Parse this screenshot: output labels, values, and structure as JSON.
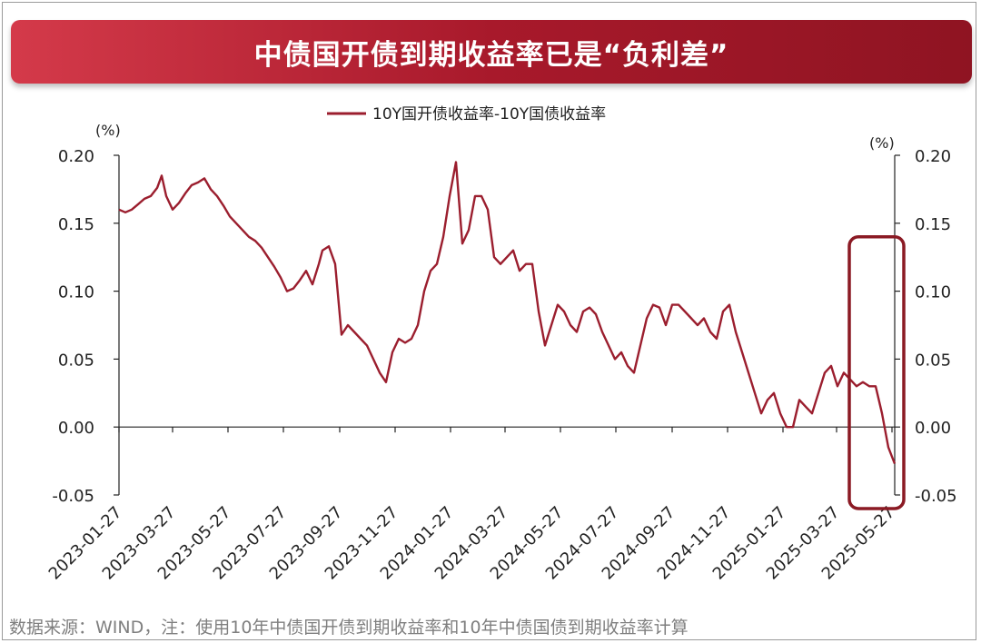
{
  "title": "中债国开债到期收益率已是“负利差”",
  "footer": "数据来源：WIND，注：使用10年中债国开债到期收益率和10年中债国债到期收益率计算",
  "colors": {
    "line": "#9b1e2e",
    "negative_tick": "#e0141e",
    "banner": "#a8192b",
    "highlight": "#8b1a24"
  },
  "chart_data": {
    "type": "line",
    "legend": "10Y国开债收益率-10Y国债收益率",
    "legend_position": "top-center",
    "y_unit_left": "(%)",
    "y_unit_right": "(%)",
    "ylim": [
      -0.05,
      0.2
    ],
    "y_ticks": [
      "0.20",
      "0.15",
      "0.10",
      "0.05",
      "0.00",
      "-0.05"
    ],
    "x_range": [
      "2023-01-27",
      "2025-05-30"
    ],
    "x_ticks": [
      "2023-01-27",
      "2023-03-27",
      "2023-05-27",
      "2023-07-27",
      "2023-09-27",
      "2023-11-27",
      "2024-01-27",
      "2024-03-27",
      "2024-05-27",
      "2024-07-27",
      "2024-09-27",
      "2024-11-27",
      "2025-01-27",
      "2025-03-27",
      "2025-05-27"
    ],
    "grid": false,
    "highlight": {
      "from": "2025-04-10",
      "to": "2025-05-30",
      "note": "boxed region"
    },
    "series": [
      {
        "name": "10Y国开债收益率-10Y国债收益率",
        "x": [
          "2023-01-27",
          "2023-02-03",
          "2023-02-10",
          "2023-02-17",
          "2023-02-24",
          "2023-03-03",
          "2023-03-10",
          "2023-03-15",
          "2023-03-20",
          "2023-03-27",
          "2023-04-03",
          "2023-04-10",
          "2023-04-17",
          "2023-04-24",
          "2023-05-01",
          "2023-05-08",
          "2023-05-15",
          "2023-05-22",
          "2023-05-29",
          "2023-06-05",
          "2023-06-12",
          "2023-06-19",
          "2023-06-26",
          "2023-07-03",
          "2023-07-10",
          "2023-07-17",
          "2023-07-24",
          "2023-07-31",
          "2023-08-07",
          "2023-08-14",
          "2023-08-21",
          "2023-08-28",
          "2023-09-04",
          "2023-09-08",
          "2023-09-15",
          "2023-09-22",
          "2023-09-29",
          "2023-10-06",
          "2023-10-13",
          "2023-10-20",
          "2023-10-27",
          "2023-11-03",
          "2023-11-10",
          "2023-11-17",
          "2023-11-24",
          "2023-12-01",
          "2023-12-08",
          "2023-12-15",
          "2023-12-22",
          "2023-12-29",
          "2024-01-05",
          "2024-01-12",
          "2024-01-19",
          "2024-01-26",
          "2024-02-02",
          "2024-02-09",
          "2024-02-16",
          "2024-02-23",
          "2024-03-01",
          "2024-03-08",
          "2024-03-15",
          "2024-03-22",
          "2024-03-29",
          "2024-04-05",
          "2024-04-12",
          "2024-04-19",
          "2024-04-26",
          "2024-05-03",
          "2024-05-10",
          "2024-05-17",
          "2024-05-24",
          "2024-05-31",
          "2024-06-07",
          "2024-06-14",
          "2024-06-21",
          "2024-06-28",
          "2024-07-05",
          "2024-07-12",
          "2024-07-19",
          "2024-07-26",
          "2024-08-02",
          "2024-08-09",
          "2024-08-16",
          "2024-08-23",
          "2024-08-30",
          "2024-09-06",
          "2024-09-13",
          "2024-09-20",
          "2024-09-27",
          "2024-10-04",
          "2024-10-11",
          "2024-10-18",
          "2024-10-25",
          "2024-11-01",
          "2024-11-08",
          "2024-11-15",
          "2024-11-22",
          "2024-11-29",
          "2024-12-06",
          "2024-12-13",
          "2024-12-20",
          "2024-12-27",
          "2025-01-03",
          "2025-01-10",
          "2025-01-17",
          "2025-01-24",
          "2025-01-31",
          "2025-02-07",
          "2025-02-14",
          "2025-02-21",
          "2025-02-28",
          "2025-03-07",
          "2025-03-14",
          "2025-03-21",
          "2025-03-28",
          "2025-04-04",
          "2025-04-11",
          "2025-04-18",
          "2025-04-25",
          "2025-05-02",
          "2025-05-09",
          "2025-05-16",
          "2025-05-23",
          "2025-05-30"
        ],
        "values": [
          0.16,
          0.158,
          0.16,
          0.164,
          0.168,
          0.17,
          0.176,
          0.185,
          0.17,
          0.16,
          0.165,
          0.172,
          0.178,
          0.18,
          0.183,
          0.175,
          0.17,
          0.163,
          0.155,
          0.15,
          0.145,
          0.14,
          0.137,
          0.132,
          0.125,
          0.118,
          0.11,
          0.1,
          0.102,
          0.108,
          0.115,
          0.105,
          0.12,
          0.13,
          0.133,
          0.12,
          0.068,
          0.075,
          0.07,
          0.065,
          0.06,
          0.05,
          0.04,
          0.033,
          0.055,
          0.065,
          0.062,
          0.065,
          0.075,
          0.1,
          0.115,
          0.12,
          0.14,
          0.17,
          0.195,
          0.135,
          0.145,
          0.17,
          0.17,
          0.16,
          0.125,
          0.12,
          0.125,
          0.13,
          0.115,
          0.12,
          0.12,
          0.085,
          0.06,
          0.075,
          0.09,
          0.085,
          0.075,
          0.07,
          0.085,
          0.088,
          0.083,
          0.07,
          0.06,
          0.05,
          0.055,
          0.045,
          0.04,
          0.06,
          0.08,
          0.09,
          0.088,
          0.075,
          0.09,
          0.09,
          0.085,
          0.08,
          0.075,
          0.08,
          0.07,
          0.065,
          0.085,
          0.09,
          0.07,
          0.055,
          0.04,
          0.025,
          0.01,
          0.02,
          0.025,
          0.01,
          0.0,
          0.0,
          0.02,
          0.015,
          0.01,
          0.025,
          0.04,
          0.045,
          0.03,
          0.04,
          0.035,
          0.03,
          0.033,
          0.03,
          0.03,
          0.01,
          -0.015,
          -0.027
        ]
      }
    ]
  }
}
